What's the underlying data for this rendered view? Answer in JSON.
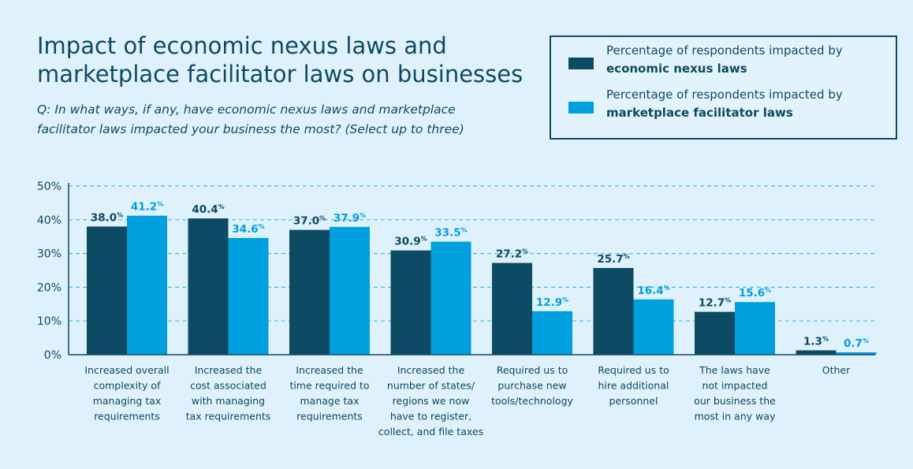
{
  "header": {
    "title_line1": "Impact of economic nexus laws and",
    "title_line2": "marketplace facilitator laws on businesses",
    "question_line1": "Q: In what ways, if any, have economic nexus laws and marketplace",
    "question_line2": "facilitator laws impacted your business the most? (Select up to three)"
  },
  "legend": {
    "items": [
      {
        "line1": "Percentage of respondents impacted by",
        "line2": "economic nexus laws",
        "color": "#0d4a63"
      },
      {
        "line1": "Percentage of respondents impacted by",
        "line2": "marketplace facilitator laws",
        "color": "#00a0df"
      }
    ]
  },
  "chart_data": {
    "type": "bar",
    "categories": [
      [
        "Increased overall",
        "complexity of",
        "managing tax",
        "requirements"
      ],
      [
        "Increased the",
        "cost associated",
        "with managing",
        "tax requirements"
      ],
      [
        "Increased the",
        "time required to",
        "manage tax",
        "requirements"
      ],
      [
        "Increased the",
        "number of states/",
        "regions we now",
        "have to register,",
        "collect, and file taxes"
      ],
      [
        "Required us to",
        "purchase new",
        "tools/technology"
      ],
      [
        "Required us to",
        "hire additional",
        "personnel"
      ],
      [
        "The laws have",
        "not impacted",
        "our business the",
        "most in any way"
      ],
      [
        "Other"
      ]
    ],
    "series": [
      {
        "name": "economic nexus laws",
        "color": "#0d4a63",
        "values": [
          38.0,
          40.4,
          37.0,
          30.9,
          27.2,
          25.7,
          12.7,
          1.3
        ]
      },
      {
        "name": "marketplace facilitator laws",
        "color": "#00a0df",
        "values": [
          41.2,
          34.6,
          37.9,
          33.5,
          12.9,
          16.4,
          15.6,
          0.7
        ]
      }
    ],
    "ylim": [
      0,
      50
    ],
    "yticks": [
      "0%",
      "10%",
      "20%",
      "30%",
      "40%",
      "50%"
    ],
    "grid": true,
    "value_suffix": "%",
    "legend_position": "top-right"
  }
}
